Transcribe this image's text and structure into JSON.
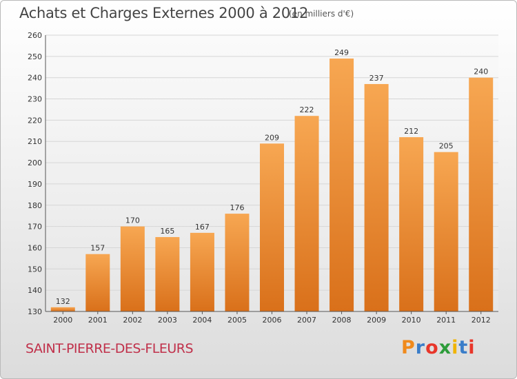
{
  "header": {
    "title": "Achats et Charges Externes 2000 à 2012",
    "unit": "(en milliers d'€)"
  },
  "footer": {
    "commune": "SAINT-PIERRE-DES-FLEURS",
    "brand": "Proxiti",
    "brand_colors": [
      "#f08a1c",
      "#3a7dc9",
      "#e8362a",
      "#2d9c3a",
      "#f0b400",
      "#3a7dc9",
      "#e8362a"
    ]
  },
  "colors": {
    "bar_top": "#f7a752",
    "bar_bottom": "#d9701a",
    "grid": "#d6d6d6",
    "axis": "#555555",
    "commune": "#c0304a"
  },
  "chart_data": {
    "type": "bar",
    "title": "Achats et Charges Externes 2000 à 2012",
    "subtitle": "(en milliers d'€)",
    "xlabel": "",
    "ylabel": "",
    "categories": [
      "2000",
      "2001",
      "2002",
      "2003",
      "2004",
      "2005",
      "2006",
      "2007",
      "2008",
      "2009",
      "2010",
      "2011",
      "2012"
    ],
    "values": [
      132,
      157,
      170,
      165,
      167,
      176,
      209,
      222,
      249,
      237,
      212,
      205,
      240
    ],
    "ylim": [
      130,
      260
    ],
    "yticks": [
      130,
      140,
      150,
      160,
      170,
      180,
      190,
      200,
      210,
      220,
      230,
      240,
      250,
      260
    ],
    "grid": true,
    "legend": "none"
  }
}
